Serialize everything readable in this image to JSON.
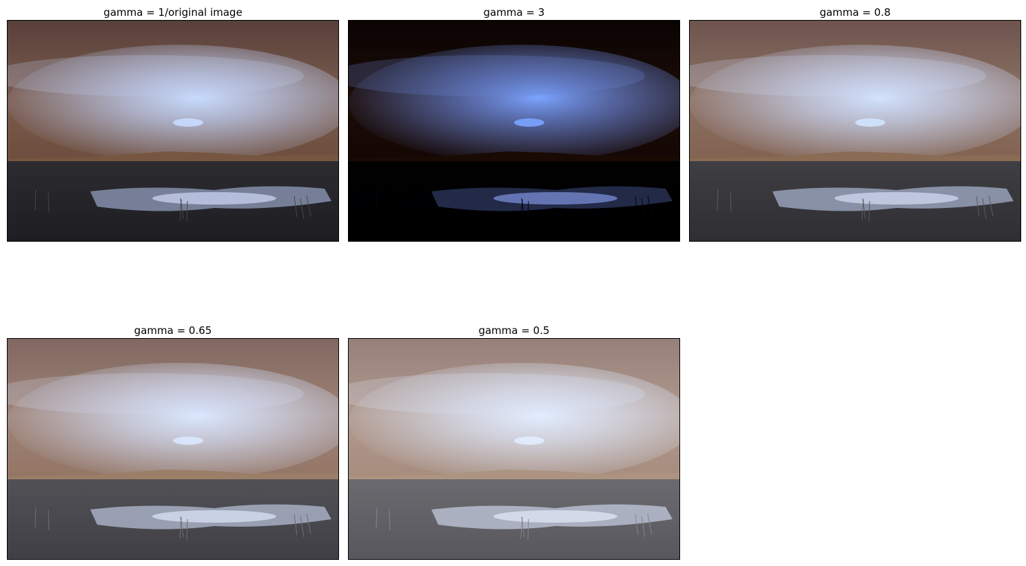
{
  "figure": {
    "panels": [
      {
        "title": "gamma = 1/original image",
        "gamma": 1
      },
      {
        "title": "gamma = 3",
        "gamma": 3
      },
      {
        "title": "gamma = 0.8",
        "gamma": 0.8
      },
      {
        "title": "gamma = 0.65",
        "gamma": 0.65
      },
      {
        "title": "gamma = 0.5",
        "gamma": 0.5
      }
    ]
  }
}
